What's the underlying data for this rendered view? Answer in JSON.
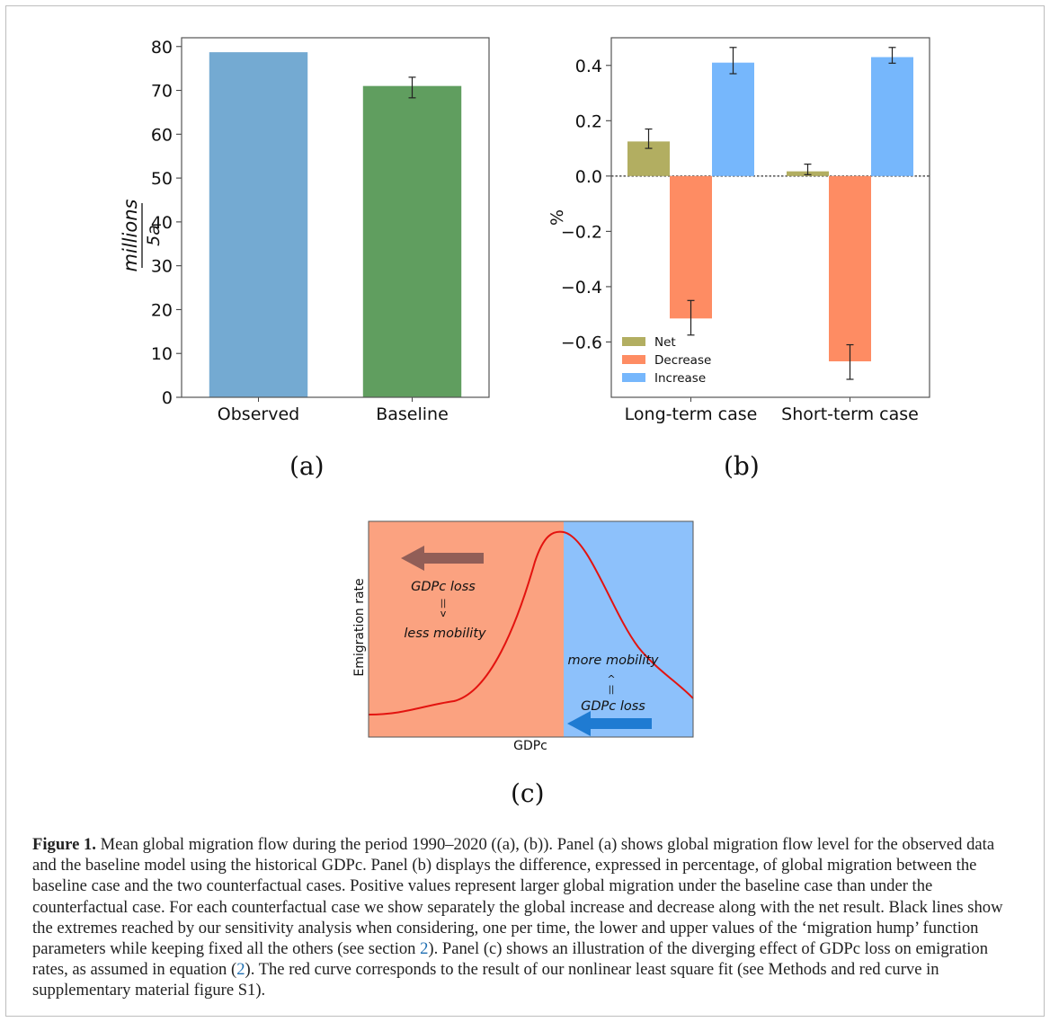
{
  "panels": {
    "a": {
      "label": "(a)",
      "chart_data": {
        "type": "bar",
        "categories": [
          "Observed",
          "Baseline"
        ],
        "values": [
          78.7,
          71.0
        ],
        "error_low": [
          null,
          68.3
        ],
        "error_high": [
          null,
          73.0
        ],
        "colors": [
          "#74aad2",
          "#609e5f"
        ],
        "ylabel_numerator": "millions",
        "ylabel_denominator": "5a",
        "ylim": [
          0,
          82
        ],
        "yticks": [
          0,
          10,
          20,
          30,
          40,
          50,
          60,
          70,
          80
        ],
        "grid": false
      }
    },
    "b": {
      "label": "(b)",
      "chart_data": {
        "type": "bar",
        "categories": [
          "Long-term case",
          "Short-term case"
        ],
        "series": [
          {
            "name": "Net",
            "color": "#b2ae61",
            "values": [
              0.125,
              0.017
            ],
            "error_low": [
              0.1,
              0.005
            ],
            "error_high": [
              0.17,
              0.043
            ]
          },
          {
            "name": "Decrease",
            "color": "#fe8c63",
            "values": [
              -0.515,
              -0.67
            ],
            "error_low": [
              -0.575,
              -0.735
            ],
            "error_high": [
              -0.45,
              -0.61
            ]
          },
          {
            "name": "Increase",
            "color": "#76b7fc",
            "values": [
              0.41,
              0.43
            ],
            "error_low": [
              0.37,
              0.408
            ],
            "error_high": [
              0.465,
              0.465
            ]
          }
        ],
        "ylabel": "%",
        "ylim": [
          -0.8,
          0.5
        ],
        "yticks": [
          -0.6,
          -0.4,
          -0.2,
          0.0,
          0.2,
          0.4
        ],
        "yticklabels": [
          "−0.6",
          "−0.4",
          "−0.2",
          "0.0",
          "0.2",
          "0.4"
        ],
        "zero_line": "dotted",
        "legend_position": "lower-left",
        "grid": false
      }
    },
    "c": {
      "label": "(c)",
      "chart_data": {
        "type": "line",
        "xlabel": "GDPc",
        "ylabel": "Emigration rate",
        "left_region_color": "#fba280",
        "right_region_color": "#8dc1fb",
        "curve_color": "#e3130f",
        "left_arrow_color": "#915e57",
        "right_arrow_color": "#1f7bd2",
        "left_annotation": [
          "GDPc loss",
          "||",
          "v",
          "less mobility"
        ],
        "right_annotation": [
          "more mobility",
          "^",
          "||",
          "GDPc loss"
        ]
      }
    }
  },
  "caption": {
    "figure_label": "Figure 1.",
    "part1": " Mean global migration flow during the period 1990–2020 ((a), (b)). Panel (a) shows global migration flow level for the observed data and the baseline model using the historical GDPc. Panel (b) displays the difference, expressed in percentage, of global migration between the baseline case and the two counterfactual cases. Positive values represent larger global migration under the baseline case than under the counterfactual case. For each counterfactual case we show separately the global increase and decrease along with the net result. Black lines show the extremes reached by our sensitivity analysis when considering, one per time, the lower and upper values of the ‘migration hump’ function parameters while keeping fixed all the others (see section ",
    "ref1": "2",
    "part2": "). Panel (c) shows an illustration of the diverging effect of GDPc loss on emigration rates, as assumed in equation (",
    "ref2": "2",
    "part3": "). The red curve corresponds to the result of our nonlinear least square fit (see Methods and red curve in supplementary material figure S1)."
  }
}
